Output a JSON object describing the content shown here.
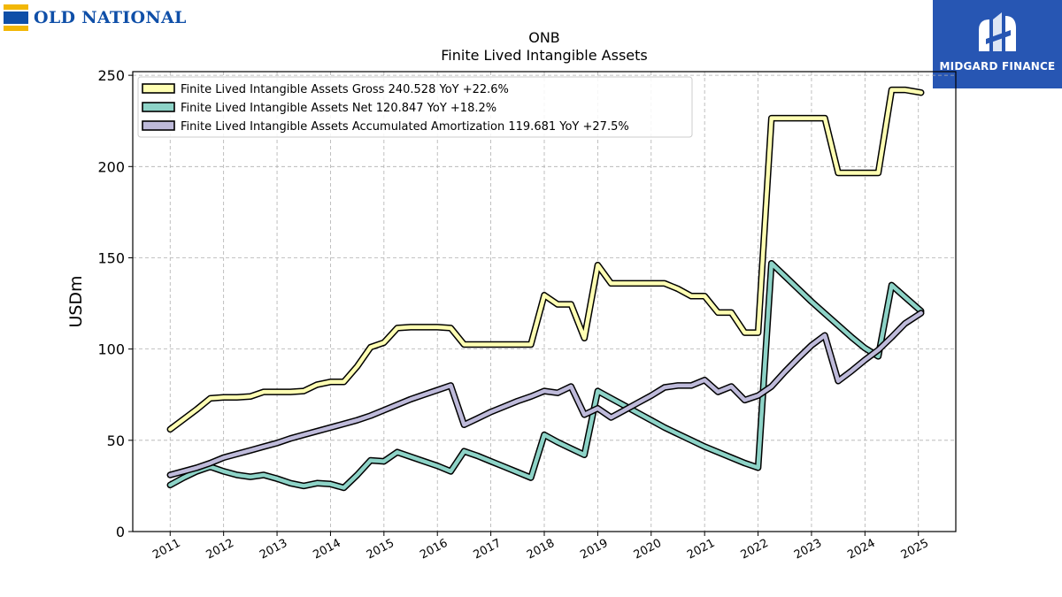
{
  "logos": {
    "left": "OLD NATIONAL",
    "right": "MIDGARD FINANCE"
  },
  "chart_data": {
    "type": "line",
    "title": "ONB",
    "subtitle": "Finite Lived Intangible Assets",
    "ylabel": "USDm",
    "xlabel": "",
    "ylim": [
      0,
      252
    ],
    "xlim": [
      2010.3,
      2025.7
    ],
    "yticks": [
      0,
      50,
      100,
      150,
      200,
      250
    ],
    "xticks": [
      "2011",
      "2012",
      "2013",
      "2014",
      "2015",
      "2016",
      "2017",
      "2018",
      "2019",
      "2020",
      "2021",
      "2022",
      "2023",
      "2024",
      "2025"
    ],
    "grid": true,
    "legend_position": "top-left",
    "series": [
      {
        "name": "Finite Lived Intangible Assets Gross  240.528 YoY +22.6%",
        "color": "#ffffb3",
        "points": [
          [
            2011.0,
            56
          ],
          [
            2011.5,
            67
          ],
          [
            2011.75,
            73
          ],
          [
            2012.0,
            73.5
          ],
          [
            2012.25,
            73.5
          ],
          [
            2012.5,
            74
          ],
          [
            2012.75,
            76.5
          ],
          [
            2013.0,
            76.5
          ],
          [
            2013.25,
            76.5
          ],
          [
            2013.5,
            77
          ],
          [
            2013.75,
            80.5
          ],
          [
            2014.0,
            82
          ],
          [
            2014.25,
            82
          ],
          [
            2014.5,
            90.5
          ],
          [
            2014.75,
            101
          ],
          [
            2015.0,
            103.5
          ],
          [
            2015.25,
            111.5
          ],
          [
            2015.5,
            112
          ],
          [
            2015.75,
            112
          ],
          [
            2016.0,
            112
          ],
          [
            2016.25,
            111.5
          ],
          [
            2016.5,
            102.5
          ],
          [
            2016.75,
            102.5
          ],
          [
            2017.0,
            102.5
          ],
          [
            2017.25,
            102.5
          ],
          [
            2017.5,
            102.5
          ],
          [
            2017.75,
            102.5
          ],
          [
            2018.0,
            129.5
          ],
          [
            2018.25,
            124.5
          ],
          [
            2018.5,
            124.5
          ],
          [
            2018.75,
            106
          ],
          [
            2019.0,
            146
          ],
          [
            2019.25,
            136
          ],
          [
            2019.5,
            136
          ],
          [
            2019.75,
            136
          ],
          [
            2020.0,
            136
          ],
          [
            2020.25,
            136
          ],
          [
            2020.5,
            133
          ],
          [
            2020.75,
            129
          ],
          [
            2021.0,
            129
          ],
          [
            2021.25,
            120
          ],
          [
            2021.5,
            120
          ],
          [
            2021.75,
            109
          ],
          [
            2022.0,
            109
          ],
          [
            2022.25,
            226.5
          ],
          [
            2022.5,
            226.5
          ],
          [
            2022.75,
            226.5
          ],
          [
            2023.0,
            226.5
          ],
          [
            2023.25,
            226.5
          ],
          [
            2023.5,
            196.5
          ],
          [
            2023.75,
            196.5
          ],
          [
            2024.0,
            196.5
          ],
          [
            2024.25,
            196.5
          ],
          [
            2024.5,
            242
          ],
          [
            2024.75,
            242
          ],
          [
            2025.05,
            240.5
          ]
        ]
      },
      {
        "name": "Finite Lived Intangible Assets Net  120.847 YoY +18.2%",
        "color": "#8dd3c7",
        "points": [
          [
            2011.0,
            25.5
          ],
          [
            2011.25,
            29.5
          ],
          [
            2011.5,
            33
          ],
          [
            2011.75,
            35.5
          ],
          [
            2012.0,
            33
          ],
          [
            2012.25,
            31
          ],
          [
            2012.5,
            30
          ],
          [
            2012.75,
            31
          ],
          [
            2013.0,
            29
          ],
          [
            2013.25,
            26.5
          ],
          [
            2013.5,
            25
          ],
          [
            2013.75,
            26.5
          ],
          [
            2014.0,
            26
          ],
          [
            2014.25,
            24
          ],
          [
            2014.5,
            31
          ],
          [
            2014.75,
            39
          ],
          [
            2015.0,
            38.5
          ],
          [
            2015.25,
            43.5
          ],
          [
            2015.5,
            41
          ],
          [
            2015.75,
            38.5
          ],
          [
            2016.0,
            36
          ],
          [
            2016.25,
            33
          ],
          [
            2016.5,
            44
          ],
          [
            2016.75,
            41.5
          ],
          [
            2017.0,
            38.5
          ],
          [
            2017.25,
            35.5
          ],
          [
            2017.5,
            32.5
          ],
          [
            2017.75,
            29.5
          ],
          [
            2018.0,
            53
          ],
          [
            2018.25,
            49
          ],
          [
            2018.5,
            45.5
          ],
          [
            2018.75,
            42
          ],
          [
            2019.0,
            77
          ],
          [
            2019.25,
            73
          ],
          [
            2019.5,
            69
          ],
          [
            2019.75,
            65
          ],
          [
            2020.0,
            61
          ],
          [
            2020.25,
            57
          ],
          [
            2020.5,
            53.5
          ],
          [
            2020.75,
            50
          ],
          [
            2021.0,
            46.5
          ],
          [
            2021.25,
            43.5
          ],
          [
            2021.5,
            40.5
          ],
          [
            2021.75,
            37.5
          ],
          [
            2022.0,
            35
          ],
          [
            2022.25,
            147
          ],
          [
            2022.5,
            140
          ],
          [
            2022.75,
            133
          ],
          [
            2023.0,
            126
          ],
          [
            2023.25,
            119.5
          ],
          [
            2023.5,
            113
          ],
          [
            2023.75,
            106.5
          ],
          [
            2024.0,
            100.5
          ],
          [
            2024.25,
            96
          ],
          [
            2024.5,
            135
          ],
          [
            2024.75,
            128.5
          ],
          [
            2025.05,
            120.8
          ]
        ]
      },
      {
        "name": "Finite Lived Intangible Assets Accumulated Amortization  119.681 YoY +27.5%",
        "color": "#bebada",
        "points": [
          [
            2011.0,
            31
          ],
          [
            2011.25,
            33
          ],
          [
            2011.5,
            35
          ],
          [
            2011.75,
            37.5
          ],
          [
            2012.0,
            40.5
          ],
          [
            2012.25,
            42.5
          ],
          [
            2012.5,
            44.5
          ],
          [
            2012.75,
            46.5
          ],
          [
            2013.0,
            48.5
          ],
          [
            2013.25,
            51
          ],
          [
            2013.5,
            53
          ],
          [
            2013.75,
            55
          ],
          [
            2014.0,
            57
          ],
          [
            2014.25,
            59
          ],
          [
            2014.5,
            61
          ],
          [
            2014.75,
            63.5
          ],
          [
            2015.0,
            66.5
          ],
          [
            2015.25,
            69.5
          ],
          [
            2015.5,
            72.5
          ],
          [
            2015.75,
            75
          ],
          [
            2016.0,
            77.5
          ],
          [
            2016.25,
            80
          ],
          [
            2016.5,
            58.5
          ],
          [
            2016.75,
            62
          ],
          [
            2017.0,
            65.5
          ],
          [
            2017.25,
            68.5
          ],
          [
            2017.5,
            71.5
          ],
          [
            2017.75,
            74
          ],
          [
            2018.0,
            77
          ],
          [
            2018.25,
            76
          ],
          [
            2018.5,
            79.5
          ],
          [
            2018.75,
            64
          ],
          [
            2019.0,
            67.5
          ],
          [
            2019.25,
            62.5
          ],
          [
            2019.5,
            66.5
          ],
          [
            2019.75,
            70.5
          ],
          [
            2020.0,
            74.5
          ],
          [
            2020.25,
            79
          ],
          [
            2020.5,
            80
          ],
          [
            2020.75,
            80
          ],
          [
            2021.0,
            83
          ],
          [
            2021.25,
            76.5
          ],
          [
            2021.5,
            79.5
          ],
          [
            2021.75,
            72
          ],
          [
            2022.0,
            74.5
          ],
          [
            2022.25,
            79.5
          ],
          [
            2022.5,
            87.5
          ],
          [
            2022.75,
            95
          ],
          [
            2023.0,
            102
          ],
          [
            2023.25,
            107.5
          ],
          [
            2023.5,
            82.5
          ],
          [
            2023.75,
            88
          ],
          [
            2024.0,
            94
          ],
          [
            2024.25,
            99.5
          ],
          [
            2024.5,
            106.5
          ],
          [
            2024.75,
            114
          ],
          [
            2025.05,
            119.7
          ]
        ]
      }
    ]
  }
}
